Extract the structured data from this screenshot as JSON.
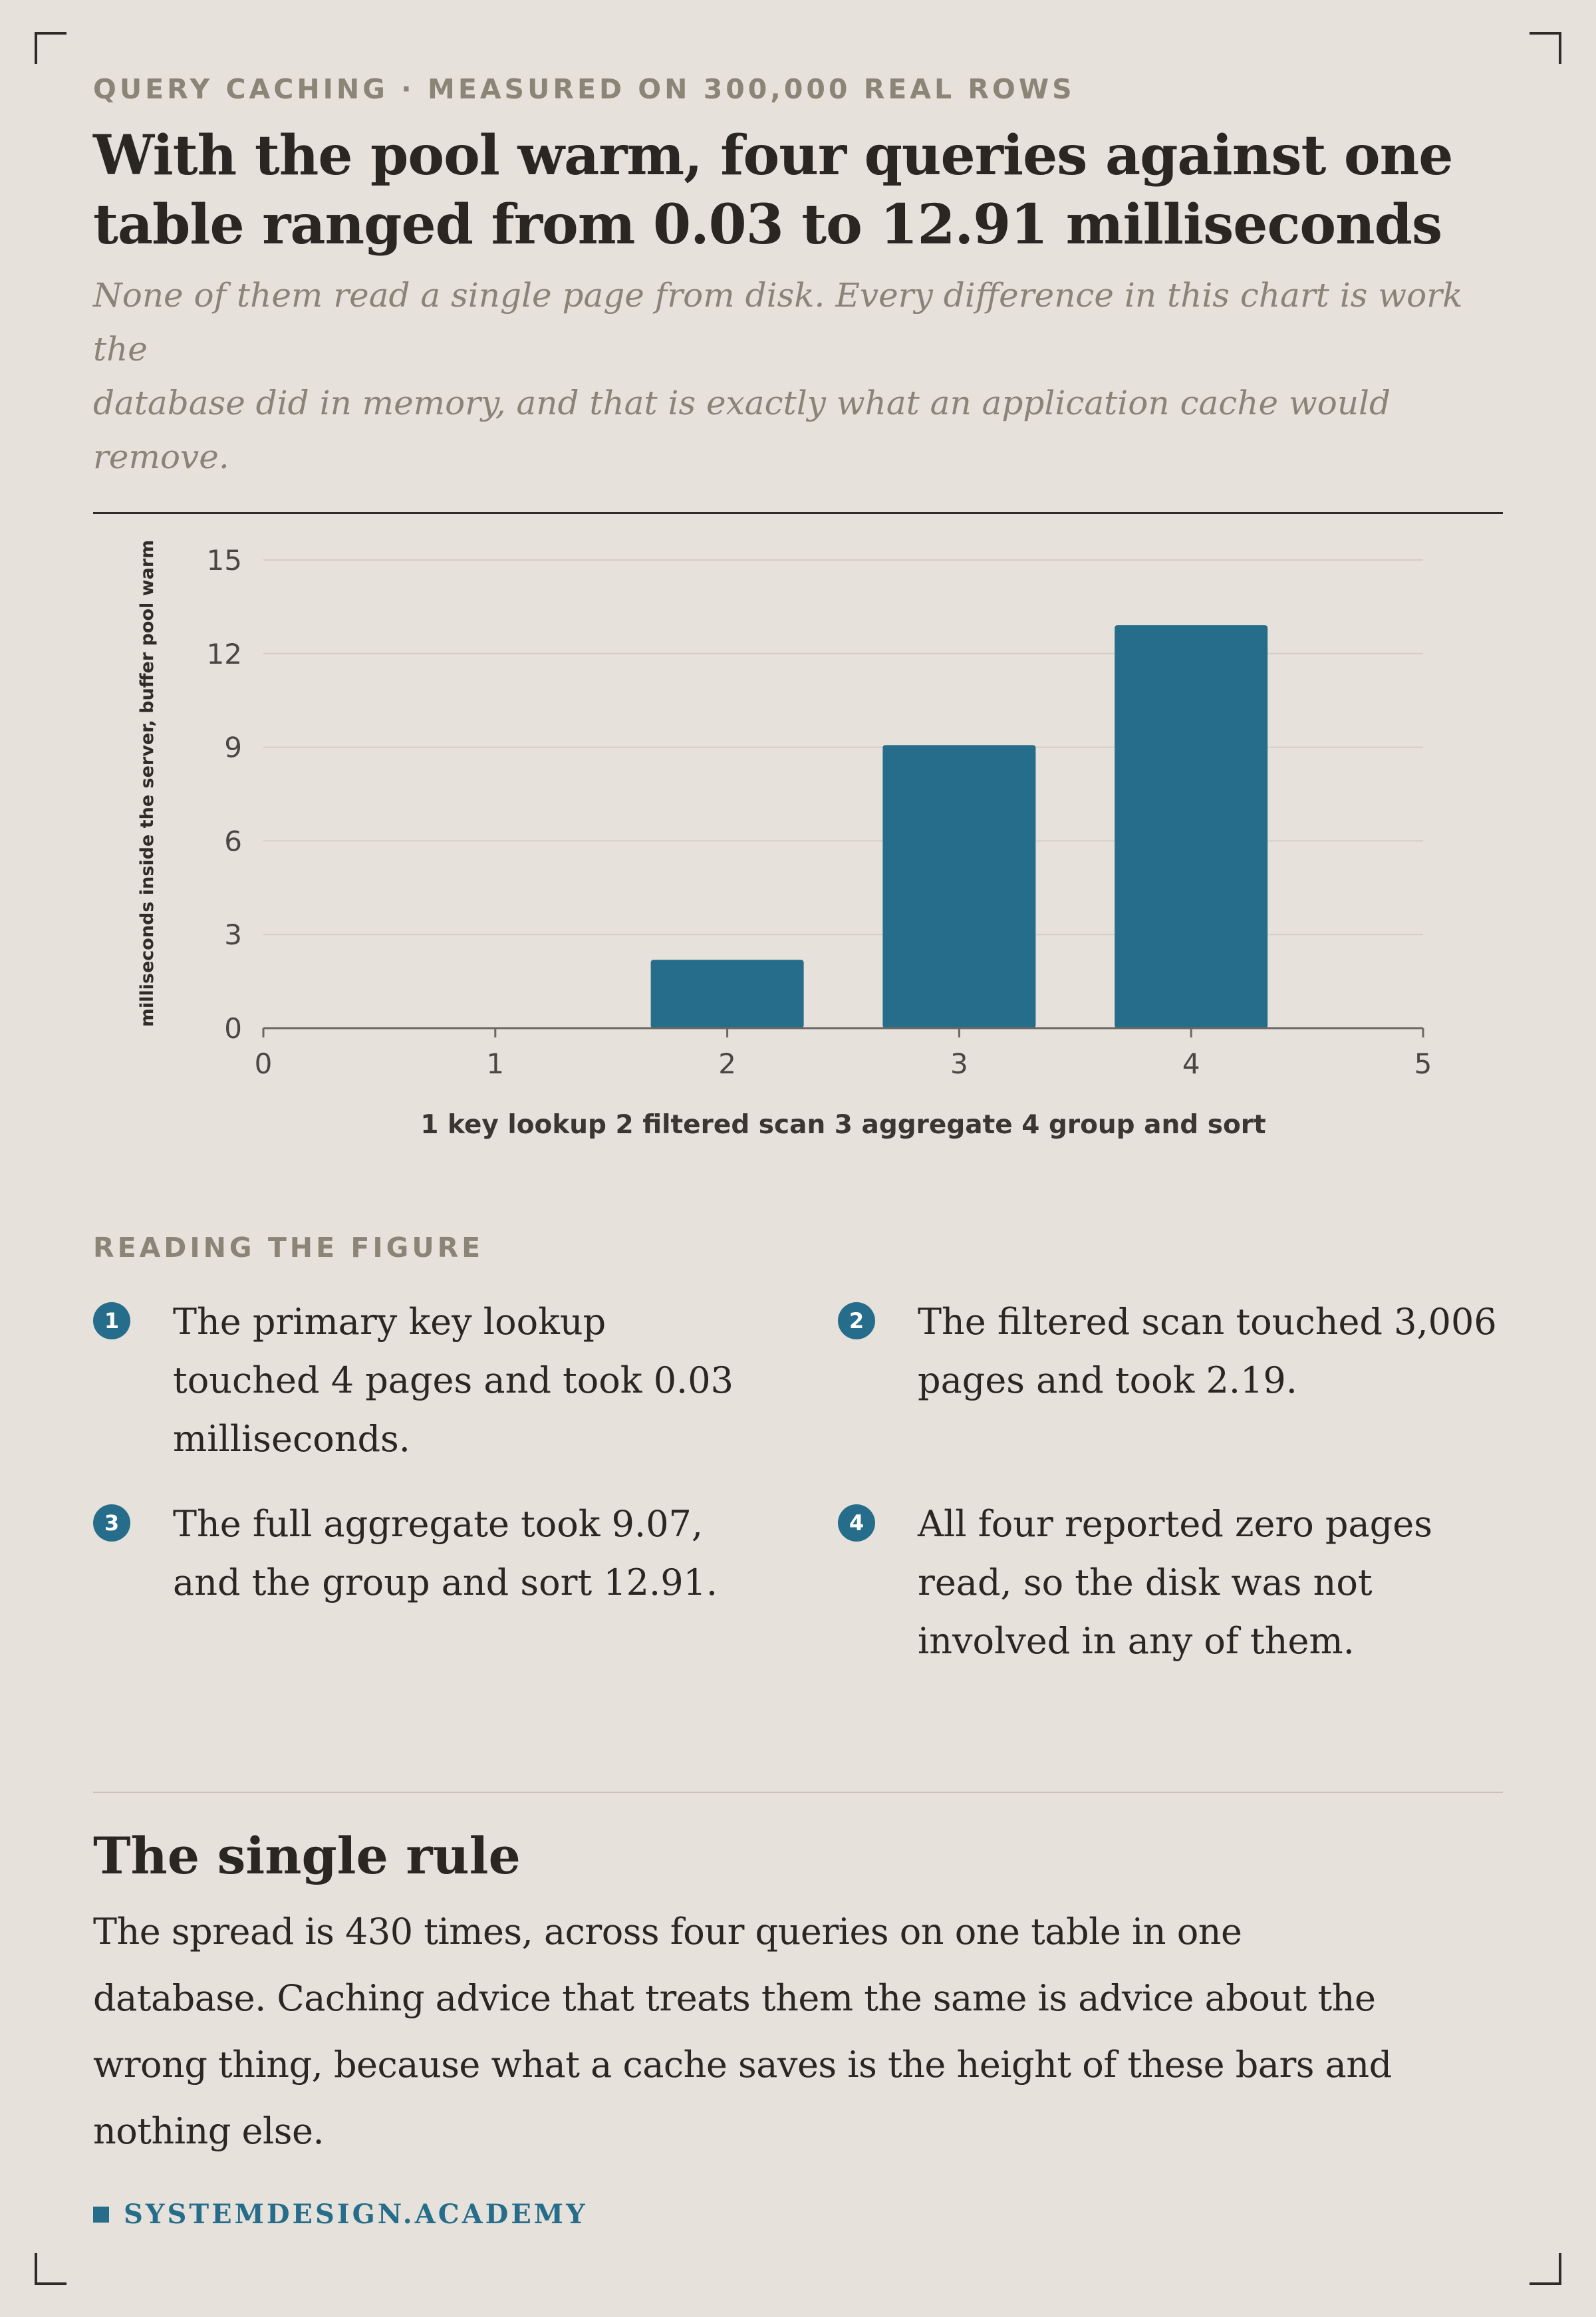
{
  "header": {
    "eyebrow": "QUERY CACHING · MEASURED ON 300,000 REAL ROWS",
    "title_line1": "With the pool warm, four queries against one",
    "title_line2": "table ranged from 0.03 to 12.91 milliseconds",
    "subtitle_line1": "None of them read a single page from disk. Every difference in this chart is work the",
    "subtitle_line2": "database did in memory, and that is exactly what an application cache would",
    "subtitle_line3": "remove."
  },
  "chart_data": {
    "type": "bar",
    "x": [
      1,
      2,
      3,
      4
    ],
    "values": [
      0.03,
      2.19,
      9.07,
      12.91
    ],
    "xlim": [
      0,
      5
    ],
    "ylim": [
      0,
      15
    ],
    "xticks": [
      "0",
      "1",
      "2",
      "3",
      "4",
      "5"
    ],
    "yticks": [
      "0",
      "3",
      "6",
      "9",
      "12",
      "15"
    ],
    "xlabel": "1 key lookup 2 filtered scan 3 aggregate 4 group and sort",
    "ylabel": "milliseconds inside the server, buffer pool warm",
    "grid": true,
    "bar_color": "#256d8a"
  },
  "reading": {
    "label": "READING THE FIGURE",
    "notes": [
      {
        "num": "1",
        "lines": [
          "The primary key lookup",
          "touched 4 pages and took 0.03",
          "milliseconds."
        ]
      },
      {
        "num": "2",
        "lines": [
          "The filtered scan touched 3,006",
          "pages and took 2.19."
        ]
      },
      {
        "num": "3",
        "lines": [
          "The full aggregate took 9.07,",
          "and the group and sort 12.91."
        ]
      },
      {
        "num": "4",
        "lines": [
          "All four reported zero pages",
          "read, so the disk was not",
          "involved in any of them."
        ]
      }
    ]
  },
  "rule_section": {
    "heading": "The single rule",
    "lines": [
      "The spread is 430 times, across four queries on one table in one",
      "database. Caching advice that treats them the same is advice about the",
      "wrong thing, because what a cache saves is the height of these bars and",
      "nothing else."
    ]
  },
  "brand": "SYSTEMDESIGN.ACADEMY"
}
